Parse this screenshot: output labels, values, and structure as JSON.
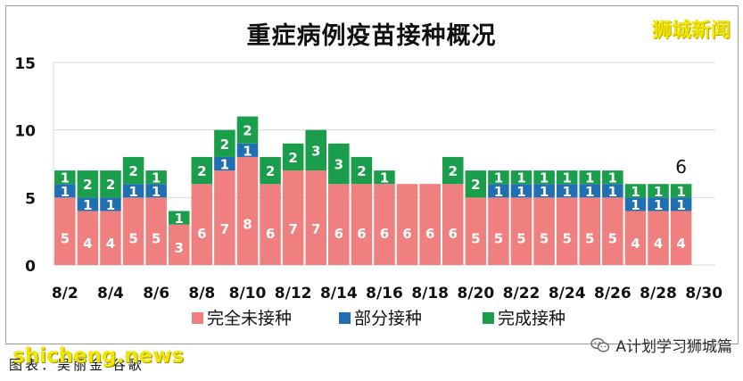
{
  "header": {
    "title": "重症病例疫苗接种概况",
    "brand": "狮城新闻"
  },
  "footer": {
    "source": "图表：吴丽金·谷歌",
    "watermark": "shicheng.news",
    "wechat": "A计划学习狮城篇"
  },
  "chart_data": {
    "type": "bar",
    "stacked": true,
    "title": "重症病例疫苗接种概况",
    "xlabel": "",
    "ylabel": "",
    "ylim": [
      0,
      15
    ],
    "yticks": [
      0,
      5,
      10,
      15
    ],
    "grid": true,
    "legend_position": "bottom",
    "categories": [
      "8/2",
      "8/3",
      "8/4",
      "8/5",
      "8/6",
      "8/7",
      "8/8",
      "8/9",
      "8/10",
      "8/11",
      "8/12",
      "8/13",
      "8/14",
      "8/15",
      "8/16",
      "8/17",
      "8/18",
      "8/19",
      "8/20",
      "8/21",
      "8/22",
      "8/23",
      "8/24",
      "8/25",
      "8/26",
      "8/27",
      "8/28",
      "8/29"
    ],
    "tick_labels": [
      "8/2",
      "8/4",
      "8/6",
      "8/8",
      "8/10",
      "8/12",
      "8/14",
      "8/16",
      "8/18",
      "8/20",
      "8/22",
      "8/24",
      "8/26",
      "8/28",
      "8/30"
    ],
    "series": [
      {
        "name": "完全未接种",
        "color": "#f08080",
        "values": [
          5,
          4,
          4,
          5,
          5,
          3,
          6,
          7,
          8,
          6,
          7,
          7,
          6,
          6,
          6,
          6,
          6,
          6,
          5,
          5,
          5,
          5,
          5,
          5,
          5,
          4,
          4,
          4
        ]
      },
      {
        "name": "部分接种",
        "color": "#1f6fb2",
        "values": [
          1,
          1,
          1,
          1,
          1,
          0,
          0,
          1,
          1,
          0,
          0,
          0,
          0,
          0,
          0,
          0,
          0,
          0,
          0,
          1,
          1,
          1,
          1,
          1,
          1,
          1,
          1,
          1
        ]
      },
      {
        "name": "完成接种",
        "color": "#1b9e4b",
        "values": [
          1,
          2,
          2,
          2,
          1,
          1,
          2,
          2,
          2,
          2,
          2,
          3,
          3,
          2,
          1,
          0,
          0,
          2,
          2,
          1,
          1,
          1,
          1,
          1,
          1,
          1,
          1,
          1
        ]
      }
    ],
    "annotations": [
      {
        "category": "8/29",
        "text": "6"
      }
    ]
  }
}
